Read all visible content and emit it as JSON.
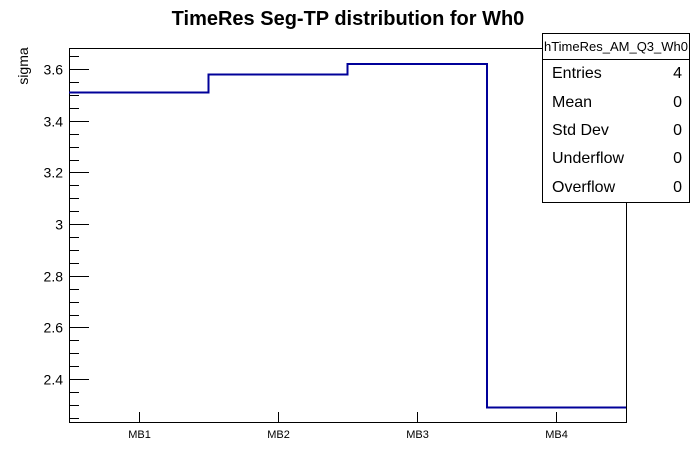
{
  "chart_data": {
    "type": "bar",
    "subtype": "step-histogram-outline",
    "title": "TimeRes Seg-TP distribution for Wh0",
    "xlabel": "",
    "ylabel": "sigma",
    "categories": [
      "MB1",
      "MB2",
      "MB3",
      "MB4"
    ],
    "values": [
      3.51,
      3.58,
      3.62,
      2.29
    ],
    "ylim": [
      2.234,
      3.682
    ],
    "y_major_ticks": [
      2.4,
      2.6,
      2.8,
      3.0,
      3.2,
      3.4,
      3.6
    ],
    "y_tick_labels": [
      "2.4",
      "2.6",
      "2.8",
      "3",
      "3.2",
      "3.4",
      "3.6"
    ],
    "y_minor_step": 0.05,
    "grid": false,
    "legend_position": "none",
    "line_color": "#000099",
    "axis_color": "#000000",
    "background_color": "#ffffff"
  },
  "stats_box": {
    "title": "hTimeRes_AM_Q3_Wh0",
    "rows": [
      {
        "label": "Entries",
        "value": "4"
      },
      {
        "label": "Mean",
        "value": "0"
      },
      {
        "label": "Std Dev",
        "value": "0"
      },
      {
        "label": "Underflow",
        "value": "0"
      },
      {
        "label": "Overflow",
        "value": "0"
      }
    ]
  }
}
